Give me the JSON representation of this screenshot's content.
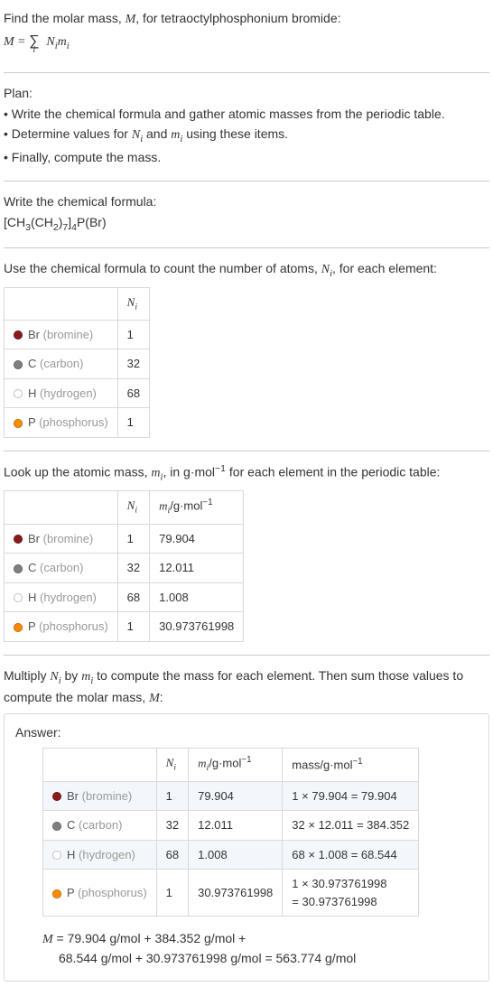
{
  "intro": {
    "line1_a": "Find the molar mass, ",
    "line1_M": "M",
    "line1_b": ", for tetraoctylphosphonium bromide:",
    "lhs": "M = ",
    "sigma": "∑",
    "sigma_sub": "i",
    "rhs_a": "N",
    "rhs_a_sub": "i",
    "rhs_b": "m",
    "rhs_b_sub": "i"
  },
  "plan": {
    "title": "Plan:",
    "b1_a": "• Write the chemical formula and gather atomic masses from the periodic table.",
    "b2_a": "• Determine values for ",
    "b2_N": "N",
    "b2_Ni": "i",
    "b2_b": " and ",
    "b2_m": "m",
    "b2_mi": "i",
    "b2_c": " using these items.",
    "b3": "• Finally, compute the mass."
  },
  "chem": {
    "title": "Write the chemical formula:",
    "f1": "[CH",
    "f1s": "3",
    "f2": "(CH",
    "f2s": "2",
    "f3": ")",
    "f3s": "7",
    "f4": "]",
    "f4s": "4",
    "f5": "P(Br)"
  },
  "count": {
    "line_a": "Use the chemical formula to count the number of atoms, ",
    "N": "N",
    "Ni": "i",
    "line_b": ", for each element:",
    "hdr_Ni_a": "N",
    "hdr_Ni_b": "i",
    "rows": [
      {
        "color": "#8b1a1a",
        "name": "Br",
        "gray": "(bromine)",
        "n": "1"
      },
      {
        "color": "#808080",
        "name": "C",
        "gray": "(carbon)",
        "n": "32"
      },
      {
        "color": "#ffffff",
        "name": "H",
        "gray": "(hydrogen)",
        "n": "68"
      },
      {
        "color": "#ff8c00",
        "name": "P",
        "gray": "(phosphorus)",
        "n": "1"
      }
    ]
  },
  "lookup": {
    "line_a": "Look up the atomic mass, ",
    "m": "m",
    "mi": "i",
    "line_b": ", in g·mol",
    "exp": "−1",
    "line_c": " for each element in the periodic table:",
    "hdr_mi_a": "m",
    "hdr_mi_b": "i",
    "hdr_mi_c": "/g·mol",
    "hdr_mi_d": "−1",
    "rows": [
      {
        "color": "#8b1a1a",
        "name": "Br",
        "gray": "(bromine)",
        "n": "1",
        "m": "79.904"
      },
      {
        "color": "#808080",
        "name": "C",
        "gray": "(carbon)",
        "n": "32",
        "m": "12.011"
      },
      {
        "color": "#ffffff",
        "name": "H",
        "gray": "(hydrogen)",
        "n": "68",
        "m": "1.008"
      },
      {
        "color": "#ff8c00",
        "name": "P",
        "gray": "(phosphorus)",
        "n": "1",
        "m": "30.973761998"
      }
    ]
  },
  "mult": {
    "a": "Multiply ",
    "N": "N",
    "Ni": "i",
    "b": " by ",
    "m": "m",
    "mi": "i",
    "c": " to compute the mass for each element. Then sum those values to compute the molar mass, ",
    "M": "M",
    "d": ":"
  },
  "answer": {
    "label": "Answer:",
    "hdr_mass_a": "mass/g·mol",
    "hdr_mass_b": "−1",
    "rows": [
      {
        "color": "#8b1a1a",
        "name": "Br",
        "gray": "(bromine)",
        "n": "1",
        "m": "79.904",
        "mass": "1 × 79.904 = 79.904"
      },
      {
        "color": "#808080",
        "name": "C",
        "gray": "(carbon)",
        "n": "32",
        "m": "12.011",
        "mass": "32 × 12.011 = 384.352"
      },
      {
        "color": "#ffffff",
        "name": "H",
        "gray": "(hydrogen)",
        "n": "68",
        "m": "1.008",
        "mass": "68 × 1.008 = 68.544"
      },
      {
        "color": "#ff8c00",
        "name": "P",
        "gray": "(phosphorus)",
        "n": "1",
        "m": "30.973761998",
        "mass1": "1 × 30.973761998",
        "mass2": "= 30.973761998"
      }
    ],
    "final_M": "M",
    "final_a": " = 79.904 g/mol + 384.352 g/mol +",
    "final_b": "68.544 g/mol + 30.973761998 g/mol = 563.774 g/mol"
  }
}
